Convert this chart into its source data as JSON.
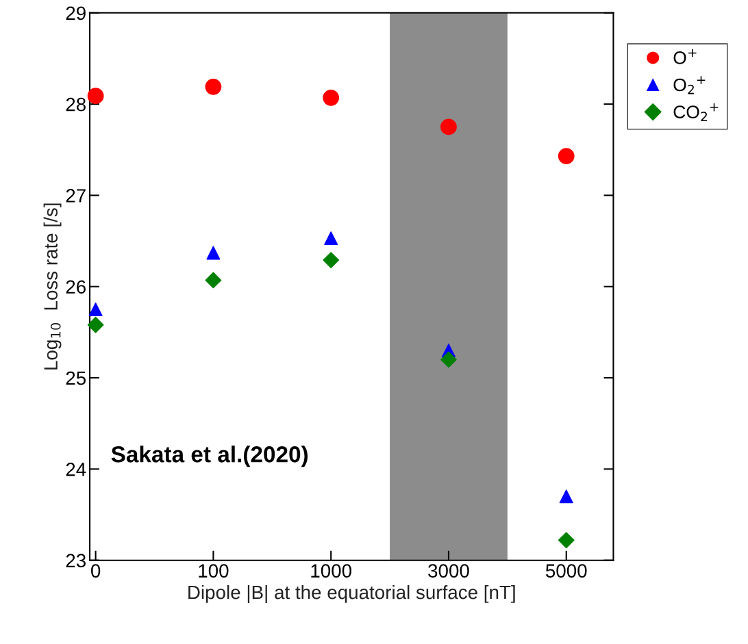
{
  "chart_data": {
    "type": "scatter",
    "xlabel": "Dipole |B| at the equatorial surface [nT]",
    "ylabel": "Log$_{10}$  Loss rate [/s]",
    "categories": [
      "0",
      "100",
      "1000",
      "3000",
      "5000"
    ],
    "series": [
      {
        "name": "O$^{+}$",
        "color": "#ff0000",
        "marker": "circle",
        "values": [
          28.09,
          28.19,
          28.07,
          27.75,
          27.43
        ]
      },
      {
        "name": "O$_{2}$$^{+}$",
        "color": "#0000ff",
        "marker": "triangle",
        "values": [
          25.75,
          26.37,
          26.53,
          25.3,
          23.7
        ]
      },
      {
        "name": "CO$_{2}$$^{+}$",
        "color": "#008000",
        "marker": "diamond",
        "values": [
          25.58,
          26.07,
          26.29,
          25.2,
          23.22
        ]
      }
    ],
    "ylim": [
      23,
      29
    ],
    "yticks": [
      23,
      24,
      25,
      26,
      27,
      28,
      29
    ],
    "bands": [
      {
        "axis": "x",
        "from": "3000",
        "to": "3000",
        "color": "#8c8c8c"
      }
    ],
    "annotations": [
      {
        "text": "Sakata et al.(2020)"
      }
    ],
    "legend": "right",
    "grid": false
  }
}
